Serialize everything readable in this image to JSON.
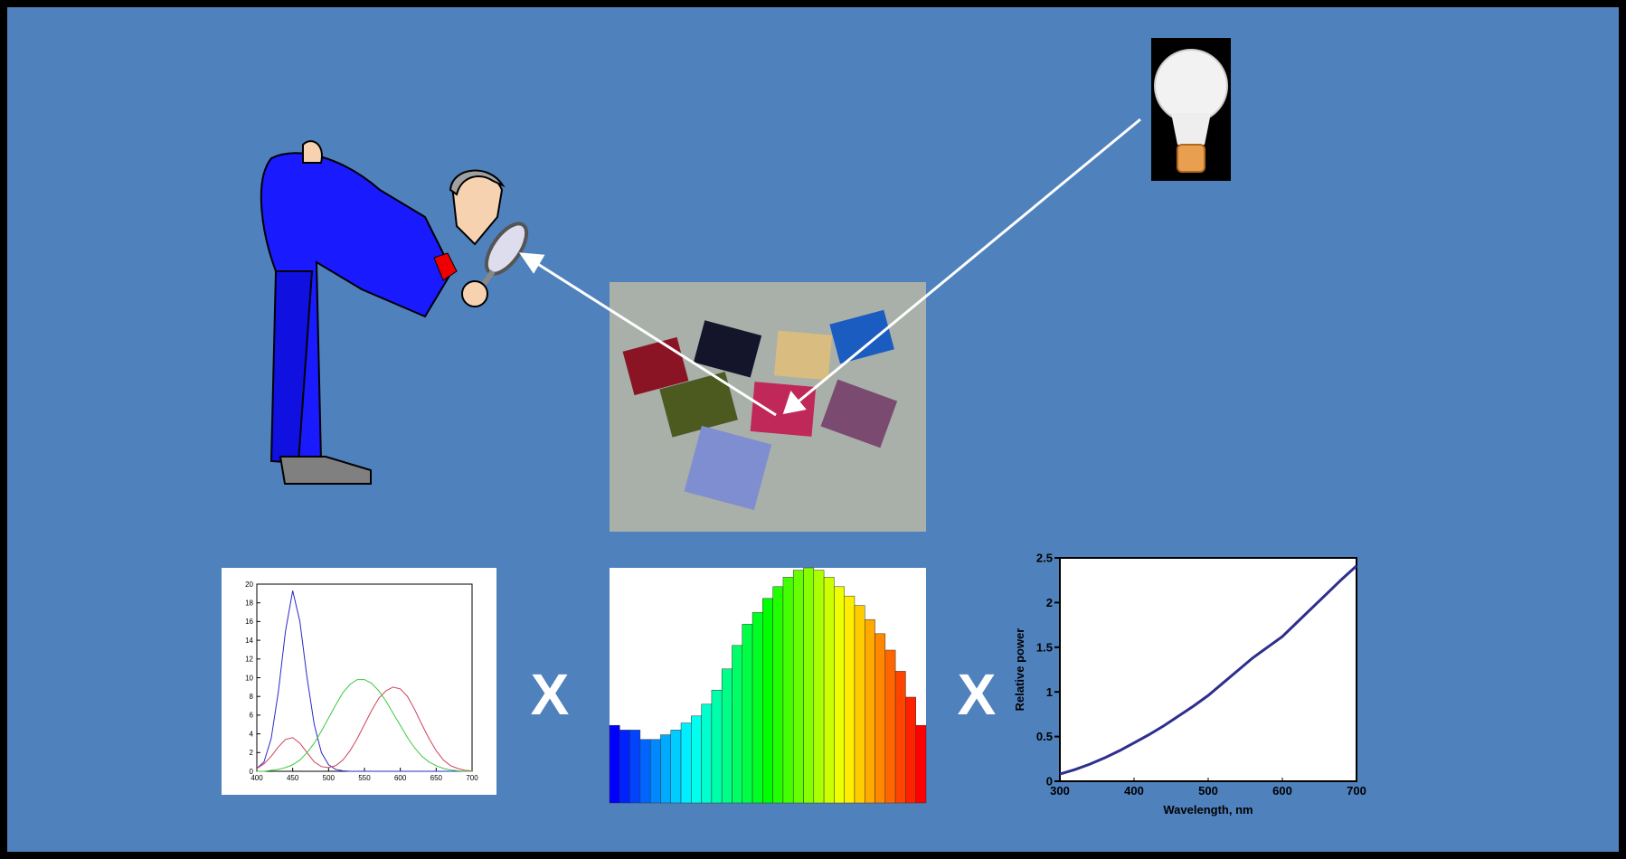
{
  "symbols": [
    "X",
    "X"
  ],
  "chart_data": [
    {
      "type": "line",
      "x": [
        400,
        410,
        420,
        430,
        440,
        450,
        460,
        470,
        480,
        490,
        500,
        510,
        520,
        530,
        540,
        550,
        560,
        570,
        580,
        590,
        600,
        610,
        620,
        630,
        640,
        650,
        660,
        670,
        680,
        690,
        700
      ],
      "series": [
        {
          "color": "#2a2ac8",
          "values": [
            0.3,
            1,
            3.5,
            8.5,
            15,
            19.3,
            16,
            10,
            5,
            2,
            0.7,
            0.2,
            0.05,
            0,
            0,
            0,
            0,
            0,
            0,
            0,
            0,
            0,
            0,
            0,
            0,
            0,
            0,
            0,
            0,
            0,
            0
          ]
        },
        {
          "color": "#d0405a",
          "values": [
            0.3,
            0.8,
            1.6,
            2.6,
            3.4,
            3.6,
            3.0,
            2.0,
            1.0,
            0.5,
            0.4,
            0.6,
            1.2,
            2.2,
            3.5,
            5.0,
            6.5,
            7.8,
            8.6,
            9.0,
            8.8,
            8.0,
            6.6,
            5.0,
            3.5,
            2.2,
            1.2,
            0.6,
            0.3,
            0.1,
            0.05
          ]
        },
        {
          "color": "#3ec83e",
          "values": [
            0,
            0,
            0.1,
            0.2,
            0.4,
            0.7,
            1.2,
            2.0,
            3.0,
            4.3,
            5.7,
            7.1,
            8.4,
            9.3,
            9.8,
            9.8,
            9.4,
            8.6,
            7.5,
            6.2,
            4.9,
            3.6,
            2.5,
            1.6,
            1.0,
            0.6,
            0.3,
            0.15,
            0.05,
            0,
            0
          ]
        }
      ],
      "xlim": [
        400,
        700
      ],
      "xticks": [
        400,
        450,
        500,
        550,
        600,
        650,
        700
      ],
      "ylim": [
        0,
        20
      ],
      "yticks": [
        0,
        2,
        4,
        6,
        8,
        10,
        12,
        14,
        16,
        18,
        20
      ]
    },
    {
      "type": "bar",
      "values": [
        33,
        31,
        31,
        27,
        27,
        29,
        31,
        34,
        37,
        42,
        48,
        57,
        67,
        76,
        81,
        87,
        92,
        96,
        99,
        100,
        99,
        96,
        92,
        88,
        84,
        78,
        72,
        65,
        56,
        45,
        33
      ],
      "colors": [
        "#0000ff",
        "#ff0000"
      ]
    },
    {
      "type": "line",
      "x": [
        300,
        320,
        340,
        360,
        380,
        400,
        420,
        440,
        460,
        480,
        500,
        520,
        540,
        560,
        580,
        600,
        620,
        640,
        660,
        680,
        700
      ],
      "series": [
        {
          "color": "#2e2e8e",
          "values": [
            0.08,
            0.13,
            0.19,
            0.26,
            0.34,
            0.43,
            0.52,
            0.62,
            0.73,
            0.84,
            0.96,
            1.1,
            1.24,
            1.38,
            1.5,
            1.62,
            1.78,
            1.94,
            2.1,
            2.26,
            2.41
          ]
        }
      ],
      "xlim": [
        300,
        700
      ],
      "xticks": [
        300,
        400,
        500,
        600,
        700
      ],
      "ylim": [
        0,
        2.5
      ],
      "yticks": [
        0,
        0.5,
        1,
        1.5,
        2,
        2.5
      ],
      "xlabel": "Wavelength, nm",
      "ylabel": "Relative power"
    }
  ]
}
